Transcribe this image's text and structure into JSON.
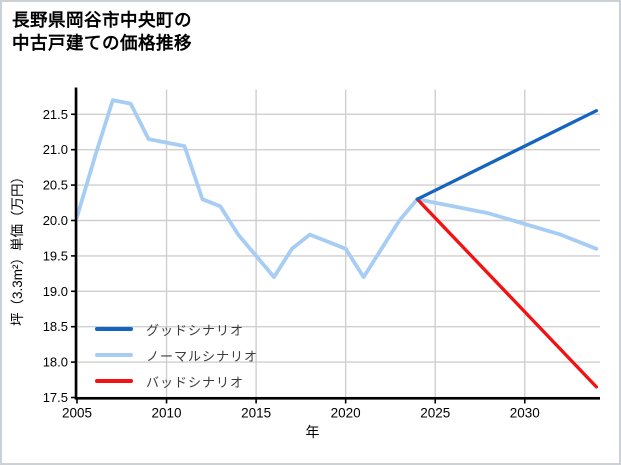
{
  "title": {
    "line1": "長野県岡谷市中央町の",
    "line2": "中古戸建ての価格推移"
  },
  "chart_data": {
    "type": "line",
    "title": "長野県岡谷市中央町の中古戸建ての価格推移",
    "xlabel": "年",
    "ylabel": "坪（3.3m²）単価（万円）",
    "xlim": [
      2005,
      2034.2
    ],
    "ylim": [
      17.5,
      21.85
    ],
    "x_ticks": [
      2005,
      2010,
      2015,
      2020,
      2025,
      2030
    ],
    "y_ticks": [
      17.5,
      18.0,
      18.5,
      19.0,
      19.5,
      20.0,
      20.5,
      21.0,
      21.5
    ],
    "grid": true,
    "grid_color": "#cfcfcf",
    "axis_color": "#000000",
    "legend_position": "lower-left",
    "draw_order": [
      1,
      2,
      0
    ],
    "series": [
      {
        "name": "グッドシナリオ",
        "color": "#1565c0",
        "width": 3.3,
        "x": [
          2024,
          2034
        ],
        "y": [
          20.3,
          21.55
        ]
      },
      {
        "name": "ノーマルシナリオ",
        "color": "#a7cdf4",
        "width": 3.8,
        "x": [
          2005,
          2006,
          2007,
          2008,
          2009,
          2010,
          2011,
          2012,
          2013,
          2014,
          2015,
          2016,
          2017,
          2018,
          2019,
          2020,
          2021,
          2022,
          2023,
          2024,
          2026,
          2028,
          2030,
          2032,
          2034
        ],
        "y": [
          20.05,
          20.9,
          21.7,
          21.65,
          21.15,
          21.1,
          21.05,
          20.3,
          20.2,
          19.8,
          19.5,
          19.2,
          19.6,
          19.8,
          19.7,
          19.6,
          19.2,
          19.6,
          20.0,
          20.3,
          20.2,
          20.1,
          19.95,
          19.8,
          19.6
        ]
      },
      {
        "name": "バッドシナリオ",
        "color": "#f31111",
        "width": 3.3,
        "x": [
          2024,
          2034
        ],
        "y": [
          20.3,
          17.65
        ]
      }
    ]
  }
}
